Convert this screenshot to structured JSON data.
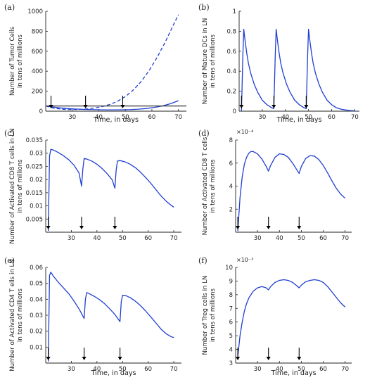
{
  "chart_data": [
    {
      "id": "a",
      "panel_label": "(a)",
      "type": "line",
      "xlabel": "Time, in days",
      "ylabel": [
        "Number of Tumor Cells",
        "in tens of millions"
      ],
      "xlim": [
        20,
        73
      ],
      "ylim": [
        0,
        1000
      ],
      "xticks": [
        30,
        40,
        50,
        60,
        70
      ],
      "yticks": [
        0,
        200,
        400,
        600,
        800,
        1000
      ],
      "ytick_labels": [
        "0",
        "200",
        "400",
        "600",
        "800",
        "1000"
      ],
      "exponent_label": "",
      "dose_arrows_x": [
        22,
        35,
        49
      ],
      "series": [
        {
          "style": "solid",
          "color": "#1f3fd0",
          "x": [
            20,
            22,
            25,
            28,
            31,
            34,
            37,
            40,
            43,
            46,
            49,
            52,
            55,
            58,
            61,
            64,
            67,
            70
          ],
          "y": [
            52,
            44,
            34,
            27,
            22,
            18,
            16,
            14,
            13,
            13,
            14,
            16,
            20,
            27,
            38,
            53,
            75,
            105
          ]
        },
        {
          "style": "dashed",
          "color": "#1f3fd0",
          "x": [
            20,
            23,
            26,
            29,
            32,
            35,
            38,
            41,
            44,
            47,
            50,
            53,
            56,
            59,
            62,
            65,
            68,
            70
          ],
          "y": [
            52,
            30,
            20,
            16,
            17,
            21,
            30,
            44,
            66,
            98,
            146,
            212,
            298,
            408,
            540,
            690,
            858,
            965
          ]
        },
        {
          "style": "solid",
          "color": "#333333",
          "x": [
            20,
            73
          ],
          "y": [
            52,
            52
          ]
        }
      ]
    },
    {
      "id": "b",
      "panel_label": "(b)",
      "type": "line",
      "xlabel": "Time, in days",
      "ylabel": [
        "Number of Mature DCs in LN",
        "in tens of millions"
      ],
      "xlim": [
        20,
        72
      ],
      "ylim": [
        0,
        1
      ],
      "xticks": [
        30,
        40,
        50,
        60,
        70
      ],
      "yticks": [
        0,
        0.2,
        0.4,
        0.6,
        0.8,
        1
      ],
      "ytick_labels": [
        "0",
        "0.2",
        "0.4",
        "0.6",
        "0.8",
        "1"
      ],
      "exponent_label": "",
      "dose_arrows_x": [
        21,
        35,
        49
      ],
      "series": [
        {
          "style": "solid",
          "color": "#1f3fd0",
          "x": [
            21,
            21.6,
            22,
            22.6,
            23.3,
            24,
            25,
            26.5,
            28,
            30,
            32,
            34,
            35,
            35.6,
            36,
            36.6,
            37.3,
            38,
            39,
            40.5,
            42,
            44,
            46,
            48,
            49,
            49.6,
            50,
            50.6,
            51.3,
            52,
            53,
            54.5,
            56,
            58,
            60,
            62,
            64,
            66,
            68,
            70
          ],
          "y": [
            0,
            0.55,
            0.82,
            0.7,
            0.58,
            0.48,
            0.38,
            0.27,
            0.19,
            0.11,
            0.065,
            0.035,
            0.025,
            0.55,
            0.82,
            0.7,
            0.58,
            0.48,
            0.38,
            0.27,
            0.19,
            0.11,
            0.065,
            0.035,
            0.025,
            0.55,
            0.82,
            0.7,
            0.58,
            0.48,
            0.38,
            0.27,
            0.19,
            0.11,
            0.065,
            0.035,
            0.02,
            0.012,
            0.006,
            0.003
          ]
        }
      ]
    },
    {
      "id": "c",
      "panel_label": "(c)",
      "type": "line",
      "xlabel": "",
      "ylabel": [
        "Number of Activated CD8 T cells in LN",
        "in tens of millions"
      ],
      "xlim": [
        20,
        73
      ],
      "ylim": [
        0,
        0.035
      ],
      "xticks": [
        30,
        40,
        50,
        60,
        70
      ],
      "yticks": [
        0.005,
        0.01,
        0.015,
        0.02,
        0.025,
        0.03,
        0.035
      ],
      "ytick_labels": [
        "0.005",
        "0.01",
        "0.015",
        "0.02",
        "0.025",
        "0.03",
        "0.035"
      ],
      "exponent_label": "",
      "dose_arrows_x": [
        21,
        34,
        47
      ],
      "series": [
        {
          "style": "solid",
          "color": "#1f3fd0",
          "x": [
            21,
            21.5,
            22,
            23,
            25,
            27,
            29,
            31,
            33,
            34,
            34.5,
            35,
            36,
            38,
            40,
            42,
            44,
            46,
            47,
            47.5,
            48,
            49,
            51,
            53,
            55,
            57,
            59,
            61,
            63,
            65,
            67,
            69,
            70
          ],
          "y": [
            0.0005,
            0.029,
            0.0315,
            0.0312,
            0.0302,
            0.029,
            0.0275,
            0.0255,
            0.0225,
            0.0175,
            0.024,
            0.028,
            0.0278,
            0.027,
            0.0258,
            0.0242,
            0.0222,
            0.0198,
            0.0167,
            0.0235,
            0.027,
            0.0272,
            0.0267,
            0.0258,
            0.0245,
            0.0228,
            0.0208,
            0.0186,
            0.0162,
            0.0138,
            0.0118,
            0.0102,
            0.0095
          ]
        }
      ]
    },
    {
      "id": "d",
      "panel_label": "(d)",
      "type": "line",
      "xlabel": "",
      "ylabel": [
        "Number of Activated CD8 T cells",
        "in tens of millions"
      ],
      "xlim": [
        20,
        73
      ],
      "ylim": [
        0,
        8
      ],
      "xticks": [
        30,
        40,
        50,
        60,
        70
      ],
      "yticks": [
        2,
        4,
        6,
        8
      ],
      "ytick_labels": [
        "2",
        "4",
        "6",
        "8"
      ],
      "exponent_label": "×10⁻⁴",
      "dose_arrows_x": [
        21,
        35,
        49
      ],
      "series": [
        {
          "style": "solid",
          "color": "#1f3fd0",
          "x": [
            21,
            22,
            23,
            24,
            25,
            26,
            27,
            28,
            30,
            32,
            34,
            35,
            36,
            38,
            40,
            42,
            44,
            46,
            48,
            49,
            50,
            52,
            54,
            56,
            58,
            60,
            62,
            64,
            66,
            68,
            70
          ],
          "y": [
            0.1,
            3.0,
            4.8,
            5.9,
            6.5,
            6.85,
            7.0,
            7.0,
            6.8,
            6.35,
            5.7,
            5.3,
            5.8,
            6.5,
            6.8,
            6.75,
            6.5,
            6.0,
            5.4,
            5.1,
            5.7,
            6.4,
            6.65,
            6.6,
            6.3,
            5.8,
            5.15,
            4.45,
            3.8,
            3.3,
            2.95
          ]
        }
      ]
    },
    {
      "id": "e",
      "panel_label": "(e)",
      "type": "line",
      "xlabel": "Time, in days",
      "ylabel": [
        "Number of Activated CD4 T ells in LN",
        "in tens of millions"
      ],
      "xlim": [
        20,
        73
      ],
      "ylim": [
        0,
        0.06
      ],
      "xticks": [
        30,
        40,
        50,
        60,
        70
      ],
      "yticks": [
        0.01,
        0.02,
        0.03,
        0.04,
        0.05,
        0.06
      ],
      "ytick_labels": [
        "0.01",
        "0.02",
        "0.03",
        "0.04",
        "0.05",
        "0.06"
      ],
      "exponent_label": "",
      "dose_arrows_x": [
        21,
        35,
        49
      ],
      "series": [
        {
          "style": "solid",
          "color": "#1f3fd0",
          "x": [
            21,
            21.5,
            22,
            23,
            25,
            27,
            29,
            31,
            33,
            35,
            35.5,
            36,
            37,
            39,
            41,
            43,
            45,
            47,
            49,
            49.5,
            50,
            51,
            53,
            55,
            57,
            59,
            61,
            63,
            65,
            67,
            69,
            70
          ],
          "y": [
            0.001,
            0.055,
            0.057,
            0.0545,
            0.0505,
            0.047,
            0.0435,
            0.039,
            0.034,
            0.028,
            0.04,
            0.0442,
            0.0435,
            0.0418,
            0.0398,
            0.0372,
            0.034,
            0.0305,
            0.026,
            0.0385,
            0.0425,
            0.0425,
            0.041,
            0.0388,
            0.036,
            0.0327,
            0.029,
            0.0252,
            0.0213,
            0.0184,
            0.0165,
            0.016
          ]
        }
      ]
    },
    {
      "id": "f",
      "panel_label": "(f)",
      "type": "line",
      "xlabel": "Time, in days",
      "ylabel": [
        "Number of Treg cells in LN",
        "in tens of millions"
      ],
      "xlim": [
        20,
        73
      ],
      "ylim": [
        3,
        10
      ],
      "xticks": [
        30,
        40,
        50,
        60,
        70
      ],
      "yticks": [
        3,
        4,
        5,
        6,
        7,
        8,
        9,
        10
      ],
      "ytick_labels": [
        "3",
        "4",
        "5",
        "6",
        "7",
        "8",
        "9",
        "10"
      ],
      "exponent_label": "×10⁻³",
      "dose_arrows_x": [
        21,
        35,
        49
      ],
      "series": [
        {
          "style": "solid",
          "color": "#1f3fd0",
          "x": [
            21,
            22,
            23,
            24,
            25,
            26,
            28,
            30,
            32,
            34,
            35,
            36,
            38,
            40,
            42,
            44,
            46,
            48,
            49,
            50,
            52,
            54,
            56,
            58,
            60,
            62,
            64,
            66,
            68,
            70
          ],
          "y": [
            3.5,
            5.0,
            6.0,
            6.8,
            7.35,
            7.75,
            8.25,
            8.5,
            8.6,
            8.5,
            8.35,
            8.6,
            8.9,
            9.05,
            9.1,
            9.05,
            8.9,
            8.65,
            8.5,
            8.7,
            8.95,
            9.05,
            9.1,
            9.05,
            8.9,
            8.6,
            8.2,
            7.8,
            7.4,
            7.1
          ]
        }
      ]
    }
  ]
}
